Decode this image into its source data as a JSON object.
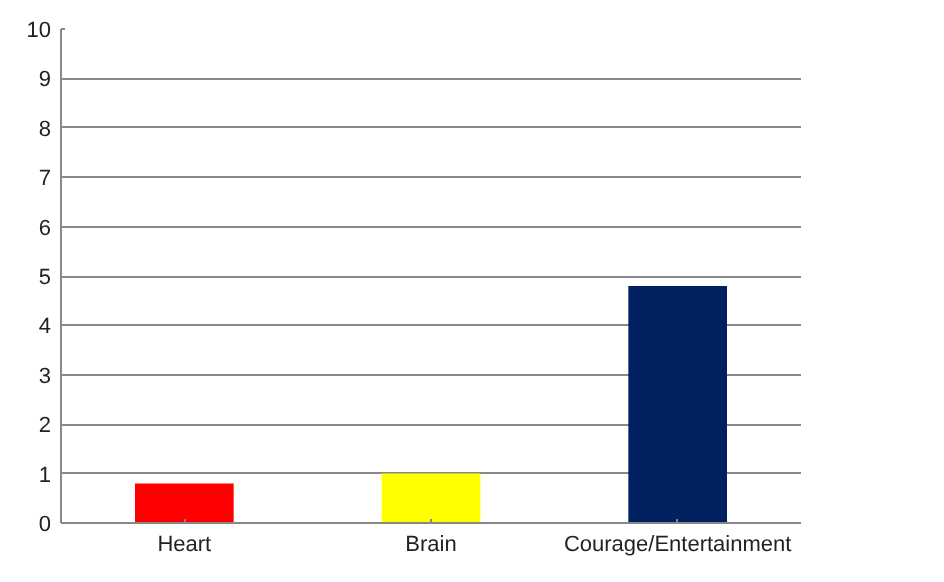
{
  "chart_data": {
    "type": "bar",
    "categories": [
      "Heart",
      "Brain",
      "Courage/Entertainment"
    ],
    "values": [
      0.8,
      1.0,
      4.8
    ],
    "colors": [
      "#ff0000",
      "#ffff00",
      "#002060"
    ],
    "ylim": [
      0,
      10
    ],
    "yticks": [
      0,
      1,
      2,
      3,
      4,
      5,
      6,
      7,
      8,
      9,
      10
    ],
    "grid": "y"
  }
}
